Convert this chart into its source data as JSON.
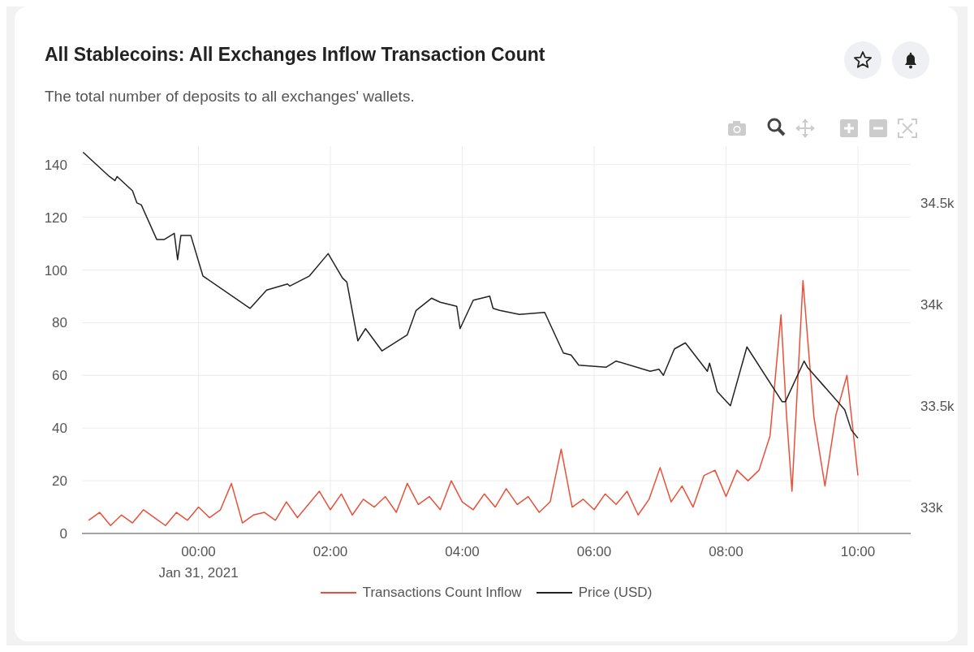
{
  "chart_data": {
    "type": "line",
    "title": "All Stablecoins: All Exchanges Inflow Transaction Count",
    "subtitle": "The total number of deposits to all exchanges' wallets.",
    "xlim": [
      "2021-01-30T22:14",
      "2021-01-31T10:48"
    ],
    "xticks": [
      {
        "value": "2021-01-31T00:00",
        "label": "00:00\nJan 31, 2021"
      },
      {
        "value": "2021-01-31T02:00",
        "label": "02:00"
      },
      {
        "value": "2021-01-31T04:00",
        "label": "04:00"
      },
      {
        "value": "2021-01-31T06:00",
        "label": "06:00"
      },
      {
        "value": "2021-01-31T08:00",
        "label": "08:00"
      },
      {
        "value": "2021-01-31T10:00",
        "label": "10:00"
      }
    ],
    "ylim": [
      0,
      147
    ],
    "yticks": [
      0,
      20,
      40,
      60,
      80,
      100,
      120,
      140
    ],
    "y2lim": [
      32870,
      34780
    ],
    "y2ticks": [
      {
        "value": 33000,
        "label": "33k"
      },
      {
        "value": 33500,
        "label": "33.5k"
      },
      {
        "value": 34000,
        "label": "34k"
      },
      {
        "value": 34500,
        "label": "34.5k"
      }
    ],
    "grid": true,
    "legend": "bottom",
    "marker": "none",
    "line_style": "solid",
    "series": [
      {
        "name": "Transactions Count Inflow",
        "color": "#e8503a",
        "x": [
          "2021-01-30T22:20",
          "2021-01-30T22:30",
          "2021-01-30T22:40",
          "2021-01-30T22:50",
          "2021-01-30T23:00",
          "2021-01-30T23:10",
          "2021-01-30T23:20",
          "2021-01-30T23:30",
          "2021-01-30T23:40",
          "2021-01-30T23:50",
          "2021-01-31T00:00",
          "2021-01-31T00:10",
          "2021-01-31T00:20",
          "2021-01-31T00:30",
          "2021-01-31T00:40",
          "2021-01-31T00:50",
          "2021-01-31T01:00",
          "2021-01-31T01:10",
          "2021-01-31T01:20",
          "2021-01-31T01:30",
          "2021-01-31T01:40",
          "2021-01-31T01:50",
          "2021-01-31T02:00",
          "2021-01-31T02:10",
          "2021-01-31T02:20",
          "2021-01-31T02:30",
          "2021-01-31T02:40",
          "2021-01-31T02:50",
          "2021-01-31T03:00",
          "2021-01-31T03:10",
          "2021-01-31T03:20",
          "2021-01-31T03:30",
          "2021-01-31T03:40",
          "2021-01-31T03:50",
          "2021-01-31T04:00",
          "2021-01-31T04:10",
          "2021-01-31T04:20",
          "2021-01-31T04:30",
          "2021-01-31T04:40",
          "2021-01-31T04:50",
          "2021-01-31T05:00",
          "2021-01-31T05:10",
          "2021-01-31T05:20",
          "2021-01-31T05:30",
          "2021-01-31T05:40",
          "2021-01-31T05:50",
          "2021-01-31T06:00",
          "2021-01-31T06:10",
          "2021-01-31T06:20",
          "2021-01-31T06:30",
          "2021-01-31T06:40",
          "2021-01-31T06:50",
          "2021-01-31T07:00",
          "2021-01-31T07:10",
          "2021-01-31T07:20",
          "2021-01-31T07:30",
          "2021-01-31T07:40",
          "2021-01-31T07:50",
          "2021-01-31T08:00",
          "2021-01-31T08:10",
          "2021-01-31T08:20",
          "2021-01-31T08:30",
          "2021-01-31T08:40",
          "2021-01-31T08:50",
          "2021-01-31T08:55",
          "2021-01-31T09:00",
          "2021-01-31T09:10",
          "2021-01-31T09:20",
          "2021-01-31T09:30",
          "2021-01-31T09:40",
          "2021-01-31T09:50",
          "2021-01-31T10:00"
        ],
        "values": [
          5,
          8,
          3,
          7,
          4,
          9,
          6,
          3,
          8,
          5,
          10,
          6,
          9,
          19,
          4,
          7,
          8,
          5,
          12,
          6,
          11,
          16,
          9,
          15,
          7,
          13,
          10,
          14,
          8,
          19,
          11,
          14,
          9,
          20,
          12,
          9,
          15,
          10,
          17,
          11,
          14,
          8,
          12,
          32,
          10,
          13,
          9,
          15,
          11,
          16,
          7,
          13,
          25,
          12,
          18,
          10,
          22,
          24,
          14,
          24,
          20,
          24,
          37,
          83,
          45,
          16,
          96,
          44,
          18,
          45,
          60,
          22
        ]
      },
      {
        "name": "Price (USD)",
        "color": "#222222",
        "axis": "y2",
        "x": [
          "2021-01-30T22:15",
          "2021-01-30T22:39",
          "2021-01-30T22:44",
          "2021-01-30T22:46",
          "2021-01-30T23:00",
          "2021-01-30T23:04",
          "2021-01-30T23:08",
          "2021-01-30T23:22",
          "2021-01-30T23:29",
          "2021-01-30T23:38",
          "2021-01-30T23:41",
          "2021-01-30T23:44",
          "2021-01-30T23:53",
          "2021-01-31T00:04",
          "2021-01-31T00:47",
          "2021-01-31T01:02",
          "2021-01-31T01:21",
          "2021-01-31T01:23",
          "2021-01-31T01:41",
          "2021-01-31T01:58",
          "2021-01-31T02:11",
          "2021-01-31T02:15",
          "2021-01-31T02:25",
          "2021-01-31T02:32",
          "2021-01-31T02:47",
          "2021-01-31T03:10",
          "2021-01-31T03:18",
          "2021-01-31T03:32",
          "2021-01-31T03:40",
          "2021-01-31T03:55",
          "2021-01-31T03:58",
          "2021-01-31T04:10",
          "2021-01-31T04:25",
          "2021-01-31T04:28",
          "2021-01-31T04:34",
          "2021-01-31T04:52",
          "2021-01-31T05:15",
          "2021-01-31T05:32",
          "2021-01-31T05:39",
          "2021-01-31T05:46",
          "2021-01-31T06:11",
          "2021-01-31T06:20",
          "2021-01-31T06:51",
          "2021-01-31T06:59",
          "2021-01-31T07:03",
          "2021-01-31T07:13",
          "2021-01-31T07:23",
          "2021-01-31T07:43",
          "2021-01-31T07:45",
          "2021-01-31T07:49",
          "2021-01-31T07:52",
          "2021-01-31T08:04",
          "2021-01-31T08:19",
          "2021-01-31T08:51",
          "2021-01-31T08:54",
          "2021-01-31T09:11",
          "2021-01-31T09:14",
          "2021-01-31T09:48",
          "2021-01-31T09:54",
          "2021-01-31T10:00"
        ],
        "values": [
          34750,
          34630,
          34610,
          34630,
          34560,
          34500,
          34490,
          34320,
          34320,
          34350,
          34220,
          34340,
          34340,
          34140,
          33980,
          34070,
          34100,
          34090,
          34140,
          34250,
          34130,
          34110,
          33820,
          33880,
          33770,
          33850,
          33970,
          34030,
          34010,
          33990,
          33880,
          34020,
          34040,
          33980,
          33970,
          33950,
          33960,
          33760,
          33750,
          33700,
          33690,
          33720,
          33670,
          33680,
          33650,
          33780,
          33810,
          33670,
          33710,
          33630,
          33570,
          33500,
          33790,
          33520,
          33520,
          33720,
          33690,
          33480,
          33380,
          33340
        ]
      }
    ]
  }
}
